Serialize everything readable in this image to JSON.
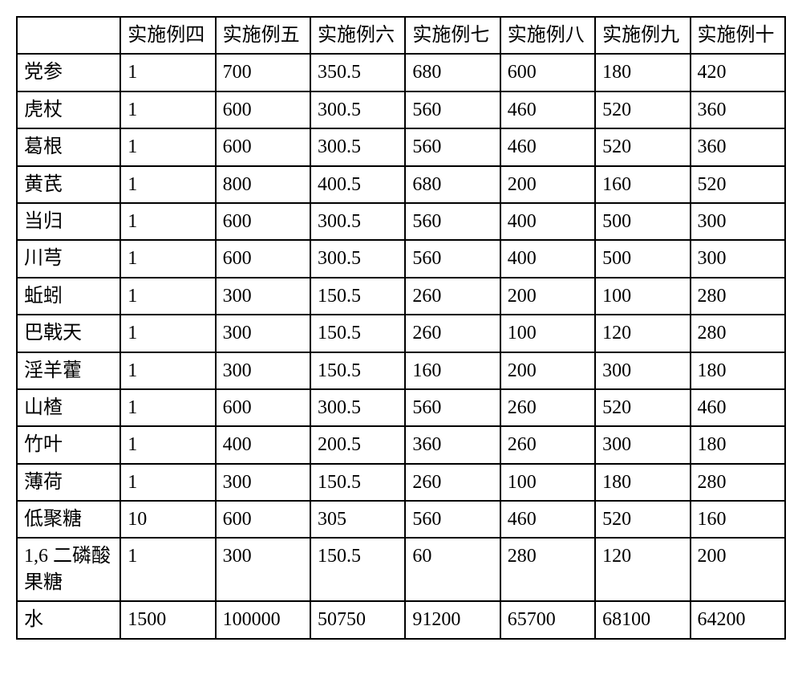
{
  "table": {
    "columns": [
      "",
      "实施例四",
      "实施例五",
      "实施例六",
      "实施例七",
      "实施例八",
      "实施例九",
      "实施例十"
    ],
    "rows": [
      [
        "党参",
        "1",
        "700",
        "350.5",
        "680",
        "600",
        "180",
        "420"
      ],
      [
        "虎杖",
        "1",
        "600",
        "300.5",
        "560",
        "460",
        "520",
        "360"
      ],
      [
        "葛根",
        "1",
        "600",
        "300.5",
        "560",
        "460",
        "520",
        "360"
      ],
      [
        "黄芪",
        "1",
        "800",
        "400.5",
        "680",
        "200",
        "160",
        "520"
      ],
      [
        "当归",
        "1",
        "600",
        "300.5",
        "560",
        "400",
        "500",
        "300"
      ],
      [
        "川芎",
        "1",
        "600",
        "300.5",
        "560",
        "400",
        "500",
        "300"
      ],
      [
        "蚯蚓",
        "1",
        "300",
        "150.5",
        "260",
        "200",
        "100",
        "280"
      ],
      [
        "巴戟天",
        "1",
        "300",
        "150.5",
        "260",
        "100",
        "120",
        "280"
      ],
      [
        "淫羊藿",
        "1",
        "300",
        "150.5",
        "160",
        "200",
        "300",
        "180"
      ],
      [
        "山楂",
        "1",
        "600",
        "300.5",
        "560",
        "260",
        "520",
        "460"
      ],
      [
        "竹叶",
        "1",
        "400",
        "200.5",
        "360",
        "260",
        "300",
        "180"
      ],
      [
        "薄荷",
        "1",
        "300",
        "150.5",
        "260",
        "100",
        "180",
        "280"
      ],
      [
        "低聚糖",
        "10",
        "600",
        "305",
        "560",
        "460",
        "520",
        "160"
      ],
      [
        "1,6 二磷酸果糖",
        "1",
        "300",
        "150.5",
        "60",
        "280",
        "120",
        "200"
      ],
      [
        "水",
        "1500",
        "100000",
        "50750",
        "91200",
        "65700",
        "68100",
        "64200"
      ]
    ],
    "col_widths_pct": [
      13.5,
      12.36,
      12.36,
      12.36,
      12.36,
      12.36,
      12.36,
      12.36
    ],
    "border_color": "#000000",
    "background_color": "#ffffff",
    "text_color": "#000000",
    "font_size_pt": 18,
    "font_family": "SimSun"
  }
}
